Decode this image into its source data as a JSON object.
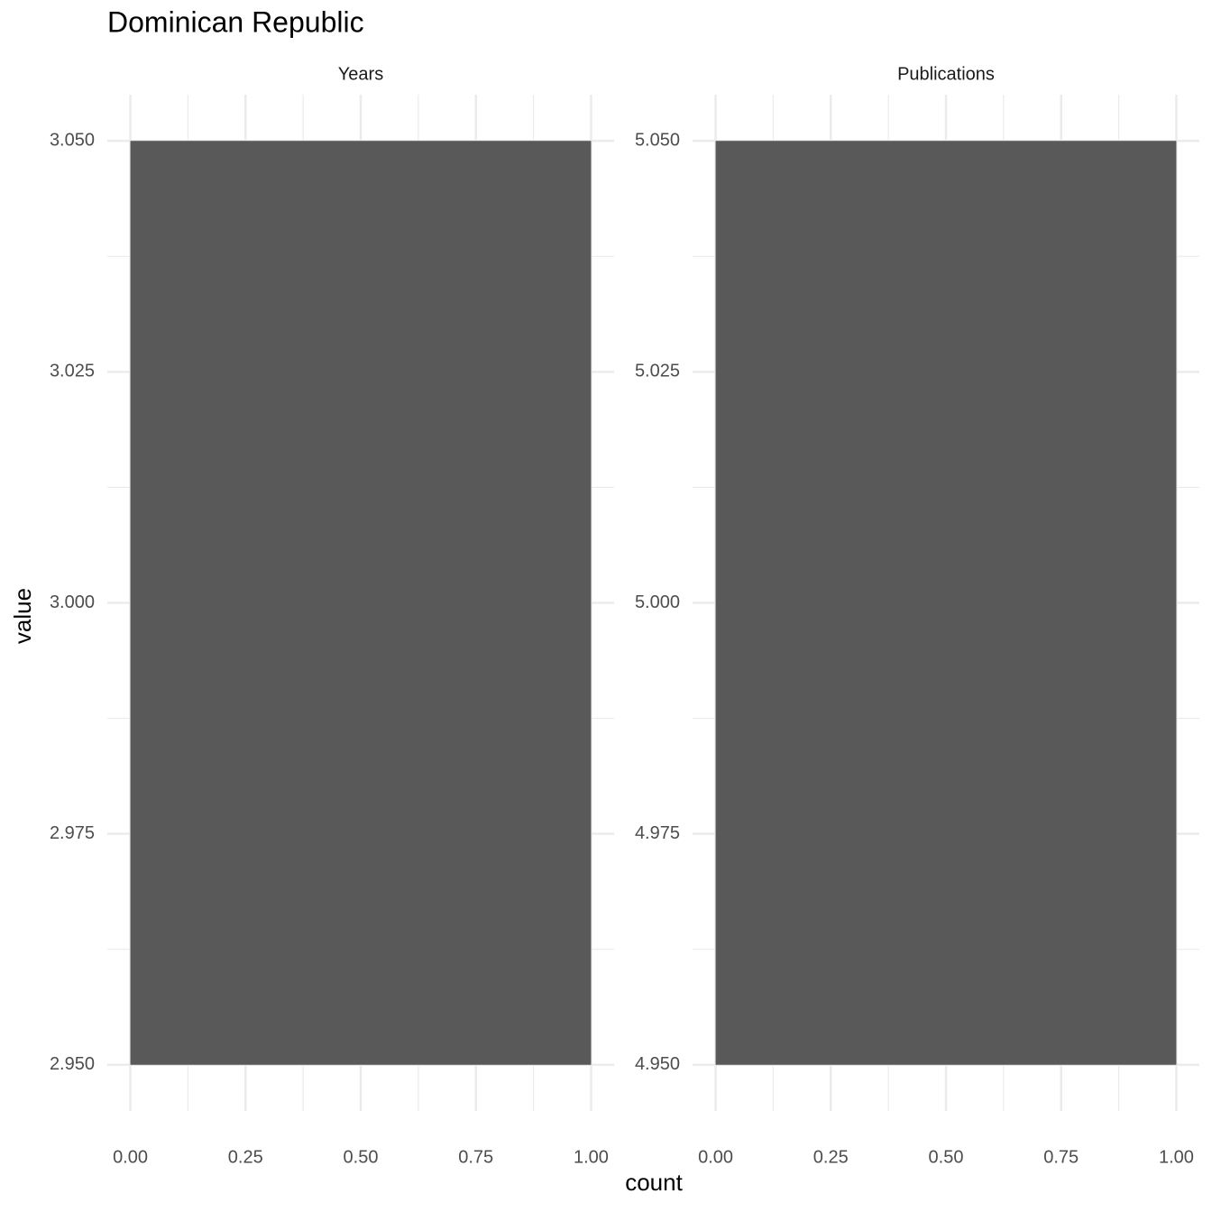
{
  "title": "Dominican Republic",
  "xlabel": "count",
  "ylabel": "value",
  "chart_data": [
    {
      "type": "histogram",
      "title": "Years",
      "orientation": "horizontal",
      "bins": [
        2.95,
        3.05
      ],
      "values": [
        1
      ],
      "color": "#595959",
      "xlim": [
        -0.05,
        1.05
      ],
      "xticks": [
        {
          "value": 0,
          "label": "0.00"
        },
        {
          "value": 0.25,
          "label": "0.25"
        },
        {
          "value": 0.5,
          "label": "0.50"
        },
        {
          "value": 0.75,
          "label": "0.75"
        },
        {
          "value": 1,
          "label": "1.00"
        }
      ],
      "ylim": [
        2.945,
        3.055
      ],
      "yticks": [
        {
          "value": 2.95,
          "label": "2.950"
        },
        {
          "value": 2.975,
          "label": "2.975"
        },
        {
          "value": 3,
          "label": "3.000"
        },
        {
          "value": 3.025,
          "label": "3.025"
        },
        {
          "value": 3.05,
          "label": "3.050"
        }
      ],
      "grid": true
    },
    {
      "type": "histogram",
      "title": "Publications",
      "orientation": "horizontal",
      "bins": [
        4.95,
        5.05
      ],
      "values": [
        1
      ],
      "color": "#595959",
      "xlim": [
        -0.05,
        1.05
      ],
      "xticks": [
        {
          "value": 0,
          "label": "0.00"
        },
        {
          "value": 0.25,
          "label": "0.25"
        },
        {
          "value": 0.5,
          "label": "0.50"
        },
        {
          "value": 0.75,
          "label": "0.75"
        },
        {
          "value": 1,
          "label": "1.00"
        }
      ],
      "ylim": [
        4.945,
        5.055
      ],
      "yticks": [
        {
          "value": 4.95,
          "label": "4.950"
        },
        {
          "value": 4.975,
          "label": "4.975"
        },
        {
          "value": 5,
          "label": "5.000"
        },
        {
          "value": 5.025,
          "label": "5.025"
        },
        {
          "value": 5.05,
          "label": "5.050"
        }
      ],
      "grid": true
    }
  ]
}
